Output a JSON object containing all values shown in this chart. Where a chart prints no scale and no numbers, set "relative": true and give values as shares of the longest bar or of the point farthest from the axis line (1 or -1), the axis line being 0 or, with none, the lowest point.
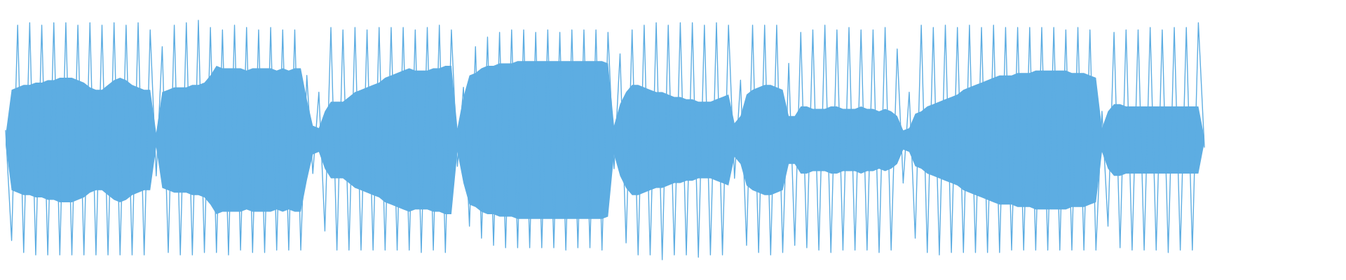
{
  "chart_data": {
    "type": "line",
    "relative": true,
    "categories": [
      null,
      null,
      null,
      null,
      null,
      null,
      null,
      null,
      null,
      null,
      null,
      null,
      null,
      null,
      null,
      null,
      null,
      null,
      null,
      null,
      null,
      null,
      null,
      null,
      null,
      null,
      null,
      null,
      null,
      null,
      null,
      null,
      null,
      null,
      null,
      null,
      null,
      null,
      null,
      null,
      null,
      null,
      null,
      null,
      null,
      null,
      null,
      null,
      null,
      null,
      null,
      null,
      null,
      null,
      null,
      null,
      null,
      null,
      null,
      null,
      null,
      null,
      null,
      null,
      null,
      null,
      null,
      null,
      null,
      null,
      null,
      null,
      null,
      null,
      null,
      null,
      null,
      null,
      null,
      null,
      null,
      null,
      null,
      null,
      null,
      null,
      null,
      null,
      null,
      null,
      null,
      null,
      null,
      null,
      null,
      null,
      null,
      null,
      null,
      null,
      null,
      null,
      null,
      null,
      null,
      null,
      null,
      null,
      null,
      null,
      null,
      null,
      null,
      null,
      null,
      null,
      null,
      null,
      null,
      null,
      null,
      null,
      null,
      null,
      null,
      null,
      null,
      null,
      null,
      null,
      null,
      null,
      null,
      null,
      null,
      null,
      null,
      null,
      null,
      null,
      null,
      null,
      null,
      null,
      null,
      null,
      null,
      null,
      null,
      null,
      null,
      null,
      null,
      null,
      null,
      null,
      null,
      null,
      null,
      null,
      null,
      null,
      null,
      null,
      null,
      null,
      null,
      null,
      null,
      null,
      null,
      null,
      null,
      null,
      null,
      null,
      null,
      null,
      null,
      null,
      null,
      null,
      null,
      null,
      null,
      null,
      null,
      null,
      null,
      null,
      null,
      null,
      null,
      null,
      null,
      null,
      null,
      null,
      null,
      null
    ],
    "series": [
      {
        "color": "#5dade2",
        "values": [
          0.54,
          0.08,
          0.98,
          0.03,
          0.99,
          0.02,
          0.98,
          0.02,
          0.99,
          0.02,
          0.99,
          0.02,
          0.98,
          0.02,
          0.99,
          0.02,
          0.98,
          0.02,
          0.99,
          0.02,
          0.98,
          0.02,
          0.99,
          0.02,
          0.96,
          0.35,
          0.89,
          0.03,
          0.98,
          0.02,
          0.99,
          0.02,
          1.0,
          0.03,
          0.97,
          0.03,
          0.96,
          0.02,
          0.98,
          0.04,
          0.97,
          0.03,
          0.96,
          0.03,
          0.97,
          0.04,
          0.96,
          0.04,
          0.96,
          0.04,
          0.77,
          0.36,
          0.7,
          0.12,
          0.97,
          0.04,
          0.96,
          0.04,
          0.97,
          0.04,
          0.96,
          0.04,
          0.97,
          0.04,
          0.97,
          0.04,
          0.97,
          0.04,
          0.96,
          0.03,
          0.97,
          0.04,
          0.98,
          0.03,
          0.96,
          0.39,
          0.72,
          0.14,
          0.89,
          0.09,
          0.93,
          0.06,
          0.95,
          0.05,
          0.96,
          0.05,
          0.96,
          0.05,
          0.95,
          0.05,
          0.96,
          0.05,
          0.95,
          0.04,
          0.96,
          0.05,
          0.96,
          0.05,
          0.96,
          0.04,
          0.95,
          0.38,
          0.86,
          0.07,
          0.96,
          0.02,
          0.98,
          0.02,
          0.99,
          0.0,
          0.98,
          0.02,
          0.99,
          0.02,
          0.99,
          0.01,
          0.98,
          0.02,
          0.99,
          0.02,
          0.98,
          0.34,
          0.75,
          0.06,
          0.98,
          0.03,
          0.98,
          0.02,
          0.98,
          0.03,
          0.82,
          0.06,
          0.95,
          0.05,
          0.96,
          0.04,
          0.98,
          0.03,
          0.96,
          0.04,
          0.97,
          0.04,
          0.96,
          0.04,
          0.96,
          0.03,
          0.97,
          0.04,
          0.88,
          0.32,
          0.7,
          0.09,
          0.98,
          0.03,
          0.97,
          0.02,
          0.98,
          0.03,
          0.97,
          0.03,
          0.98,
          0.03,
          0.97,
          0.03,
          0.98,
          0.03,
          0.97,
          0.04,
          0.97,
          0.04,
          0.97,
          0.04,
          0.97,
          0.04,
          0.97,
          0.04,
          0.96,
          0.04,
          0.97,
          0.04,
          0.96,
          0.04,
          0.62,
          0.14,
          0.95,
          0.05,
          0.96,
          0.04,
          0.96,
          0.04,
          0.97,
          0.04,
          0.96,
          0.03,
          0.97,
          0.04,
          0.97,
          0.04,
          0.99,
          0.47
        ],
        "upper": [
          0.52,
          0.71,
          0.72,
          0.73,
          0.73,
          0.74,
          0.74,
          0.75,
          0.75,
          0.76,
          0.76,
          0.76,
          0.75,
          0.74,
          0.72,
          0.71,
          0.71,
          0.73,
          0.75,
          0.76,
          0.75,
          0.73,
          0.72,
          0.71,
          0.71,
          0.53,
          0.7,
          0.71,
          0.72,
          0.72,
          0.72,
          0.73,
          0.73,
          0.74,
          0.77,
          0.81,
          0.8,
          0.8,
          0.8,
          0.8,
          0.79,
          0.8,
          0.8,
          0.8,
          0.8,
          0.79,
          0.8,
          0.79,
          0.8,
          0.8,
          0.67,
          0.56,
          0.55,
          0.62,
          0.66,
          0.66,
          0.66,
          0.68,
          0.7,
          0.71,
          0.72,
          0.73,
          0.74,
          0.76,
          0.77,
          0.78,
          0.79,
          0.8,
          0.79,
          0.79,
          0.79,
          0.8,
          0.8,
          0.81,
          0.81,
          0.55,
          0.68,
          0.77,
          0.78,
          0.8,
          0.81,
          0.81,
          0.82,
          0.82,
          0.82,
          0.83,
          0.83,
          0.83,
          0.83,
          0.83,
          0.83,
          0.83,
          0.83,
          0.83,
          0.83,
          0.83,
          0.83,
          0.83,
          0.83,
          0.83,
          0.82,
          0.56,
          0.65,
          0.7,
          0.73,
          0.73,
          0.72,
          0.71,
          0.7,
          0.7,
          0.69,
          0.68,
          0.68,
          0.67,
          0.67,
          0.66,
          0.66,
          0.66,
          0.67,
          0.68,
          0.69,
          0.57,
          0.6,
          0.69,
          0.71,
          0.72,
          0.73,
          0.73,
          0.72,
          0.71,
          0.6,
          0.6,
          0.64,
          0.64,
          0.63,
          0.63,
          0.63,
          0.64,
          0.64,
          0.63,
          0.63,
          0.63,
          0.64,
          0.63,
          0.63,
          0.62,
          0.63,
          0.62,
          0.6,
          0.54,
          0.55,
          0.61,
          0.62,
          0.64,
          0.65,
          0.66,
          0.67,
          0.68,
          0.69,
          0.71,
          0.72,
          0.73,
          0.74,
          0.75,
          0.76,
          0.77,
          0.77,
          0.77,
          0.78,
          0.78,
          0.78,
          0.79,
          0.79,
          0.79,
          0.79,
          0.79,
          0.79,
          0.78,
          0.78,
          0.78,
          0.77,
          0.76,
          0.55,
          0.62,
          0.65,
          0.65,
          0.64,
          0.64,
          0.64,
          0.64,
          0.64,
          0.64,
          0.64,
          0.64,
          0.64,
          0.64,
          0.64,
          0.64,
          0.64,
          0.51
        ],
        "lower": [
          0.48,
          0.29,
          0.28,
          0.27,
          0.27,
          0.26,
          0.26,
          0.25,
          0.25,
          0.24,
          0.24,
          0.24,
          0.25,
          0.26,
          0.28,
          0.29,
          0.29,
          0.27,
          0.25,
          0.24,
          0.25,
          0.27,
          0.28,
          0.29,
          0.29,
          0.47,
          0.3,
          0.29,
          0.28,
          0.28,
          0.28,
          0.27,
          0.27,
          0.26,
          0.23,
          0.19,
          0.2,
          0.2,
          0.2,
          0.2,
          0.21,
          0.2,
          0.2,
          0.2,
          0.2,
          0.21,
          0.2,
          0.21,
          0.2,
          0.2,
          0.33,
          0.44,
          0.45,
          0.38,
          0.34,
          0.34,
          0.34,
          0.32,
          0.3,
          0.29,
          0.28,
          0.27,
          0.26,
          0.24,
          0.23,
          0.22,
          0.21,
          0.2,
          0.21,
          0.21,
          0.21,
          0.2,
          0.2,
          0.19,
          0.19,
          0.45,
          0.32,
          0.23,
          0.22,
          0.2,
          0.19,
          0.19,
          0.18,
          0.18,
          0.18,
          0.17,
          0.17,
          0.17,
          0.17,
          0.17,
          0.17,
          0.17,
          0.17,
          0.17,
          0.17,
          0.17,
          0.17,
          0.17,
          0.17,
          0.17,
          0.18,
          0.44,
          0.35,
          0.3,
          0.27,
          0.27,
          0.28,
          0.29,
          0.3,
          0.3,
          0.31,
          0.32,
          0.32,
          0.33,
          0.33,
          0.34,
          0.34,
          0.34,
          0.33,
          0.32,
          0.31,
          0.43,
          0.4,
          0.31,
          0.29,
          0.28,
          0.27,
          0.27,
          0.28,
          0.29,
          0.4,
          0.4,
          0.36,
          0.36,
          0.37,
          0.37,
          0.37,
          0.36,
          0.36,
          0.37,
          0.37,
          0.37,
          0.36,
          0.37,
          0.37,
          0.38,
          0.37,
          0.38,
          0.4,
          0.46,
          0.45,
          0.39,
          0.38,
          0.36,
          0.35,
          0.34,
          0.33,
          0.32,
          0.31,
          0.29,
          0.28,
          0.27,
          0.26,
          0.25,
          0.24,
          0.23,
          0.23,
          0.23,
          0.22,
          0.22,
          0.22,
          0.21,
          0.21,
          0.21,
          0.21,
          0.21,
          0.21,
          0.22,
          0.22,
          0.22,
          0.23,
          0.24,
          0.45,
          0.38,
          0.35,
          0.35,
          0.36,
          0.36,
          0.36,
          0.36,
          0.36,
          0.36,
          0.36,
          0.36,
          0.36,
          0.36,
          0.36,
          0.36,
          0.36,
          0.49
        ]
      }
    ]
  }
}
